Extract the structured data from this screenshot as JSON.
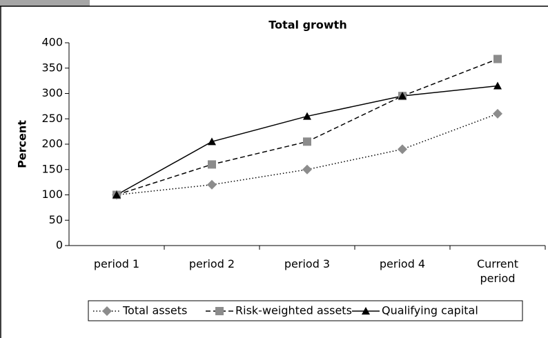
{
  "chart_data": {
    "type": "line",
    "title": "Total growth",
    "y_label": "Percent",
    "categories": [
      "period 1",
      "period 2",
      "period 3",
      "period 4",
      "Current period"
    ],
    "series": [
      {
        "name": "Total assets",
        "color": "#8c8c8c",
        "marker": "diamond",
        "dash": "dotted",
        "values": [
          100,
          120,
          150,
          190,
          260
        ]
      },
      {
        "name": "Risk-weighted assets",
        "color": "#8c8c8c",
        "marker": "square",
        "dash": "dashed",
        "values": [
          100,
          160,
          205,
          295,
          368
        ]
      },
      {
        "name": "Qualifying capital",
        "color": "#000000",
        "marker": "triangle",
        "dash": "solid",
        "values": [
          100,
          205,
          255,
          295,
          315
        ]
      }
    ],
    "ylim": [
      0,
      400
    ],
    "yticks": [
      0,
      50,
      100,
      150,
      200,
      250,
      300,
      350,
      400
    ],
    "legend": "bottom"
  }
}
